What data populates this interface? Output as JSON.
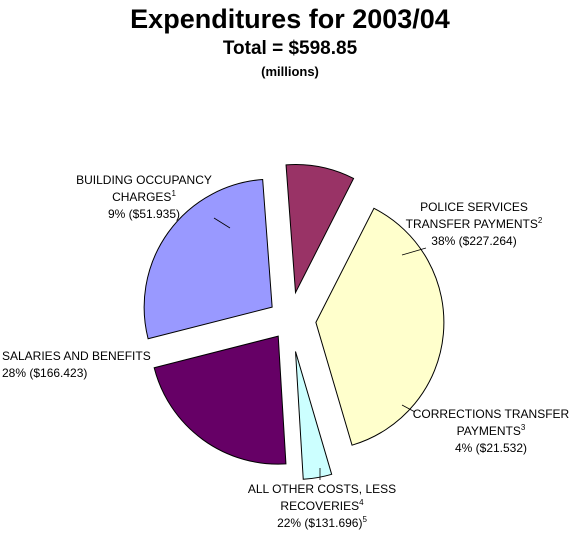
{
  "header": {
    "title": "Expenditures for 2003/04",
    "total": "Total  = $598.85",
    "units": "(millions)"
  },
  "chart_data": {
    "type": "pie",
    "title": "Expenditures for 2003/04",
    "subtitle": "Total  = $598.85",
    "units": "(millions)",
    "exploded": true,
    "slices": [
      {
        "label": "POLICE SERVICES TRANSFER PAYMENTS",
        "footnote": "2",
        "percent": 38,
        "value": 227.264,
        "value_text": "38% ($227.264)",
        "color": "#FFFFCC"
      },
      {
        "label": "CORRECTIONS TRANSFER PAYMENTS",
        "footnote": "3",
        "percent": 4,
        "value": 21.532,
        "value_text": "4% ($21.532)",
        "color": "#CCFFFF"
      },
      {
        "label": "ALL OTHER COSTS, LESS RECOVERIES",
        "footnote": "4",
        "percent": 22,
        "value": 131.696,
        "value_text": "22% ($131.696)",
        "value_footnote": "5",
        "color": "#660066"
      },
      {
        "label": "SALARIES AND BENEFITS",
        "footnote": "",
        "percent": 28,
        "value": 166.423,
        "value_text": "28% ($166.423)",
        "color": "#9999FF"
      },
      {
        "label": "BUILDING OCCUPANCY CHARGES",
        "footnote": "1",
        "percent": 9,
        "value": 51.935,
        "value_text": "9% ($51.935)",
        "color": "#993366"
      }
    ],
    "labels": {
      "police": {
        "line1": "POLICE SERVICES",
        "line2": "TRANSFER PAYMENTS",
        "sup": "2",
        "line3": "38% ($227.264)"
      },
      "corrections": {
        "line1": "CORRECTIONS TRANSFER",
        "line2": "PAYMENTS",
        "sup": "3",
        "line3": "4% ($21.532)"
      },
      "other": {
        "line1": "ALL OTHER COSTS, LESS",
        "line2": "RECOVERIES",
        "sup": "4",
        "line3": "22% ($131.696)",
        "sup2": "5"
      },
      "salaries": {
        "line1": "SALARIES AND BENEFITS",
        "line2": "28% ($166.423)"
      },
      "building": {
        "line1": "BUILDING OCCUPANCY",
        "line2": "CHARGES",
        "sup": "1",
        "line3": "9% ($51.935)"
      }
    }
  }
}
